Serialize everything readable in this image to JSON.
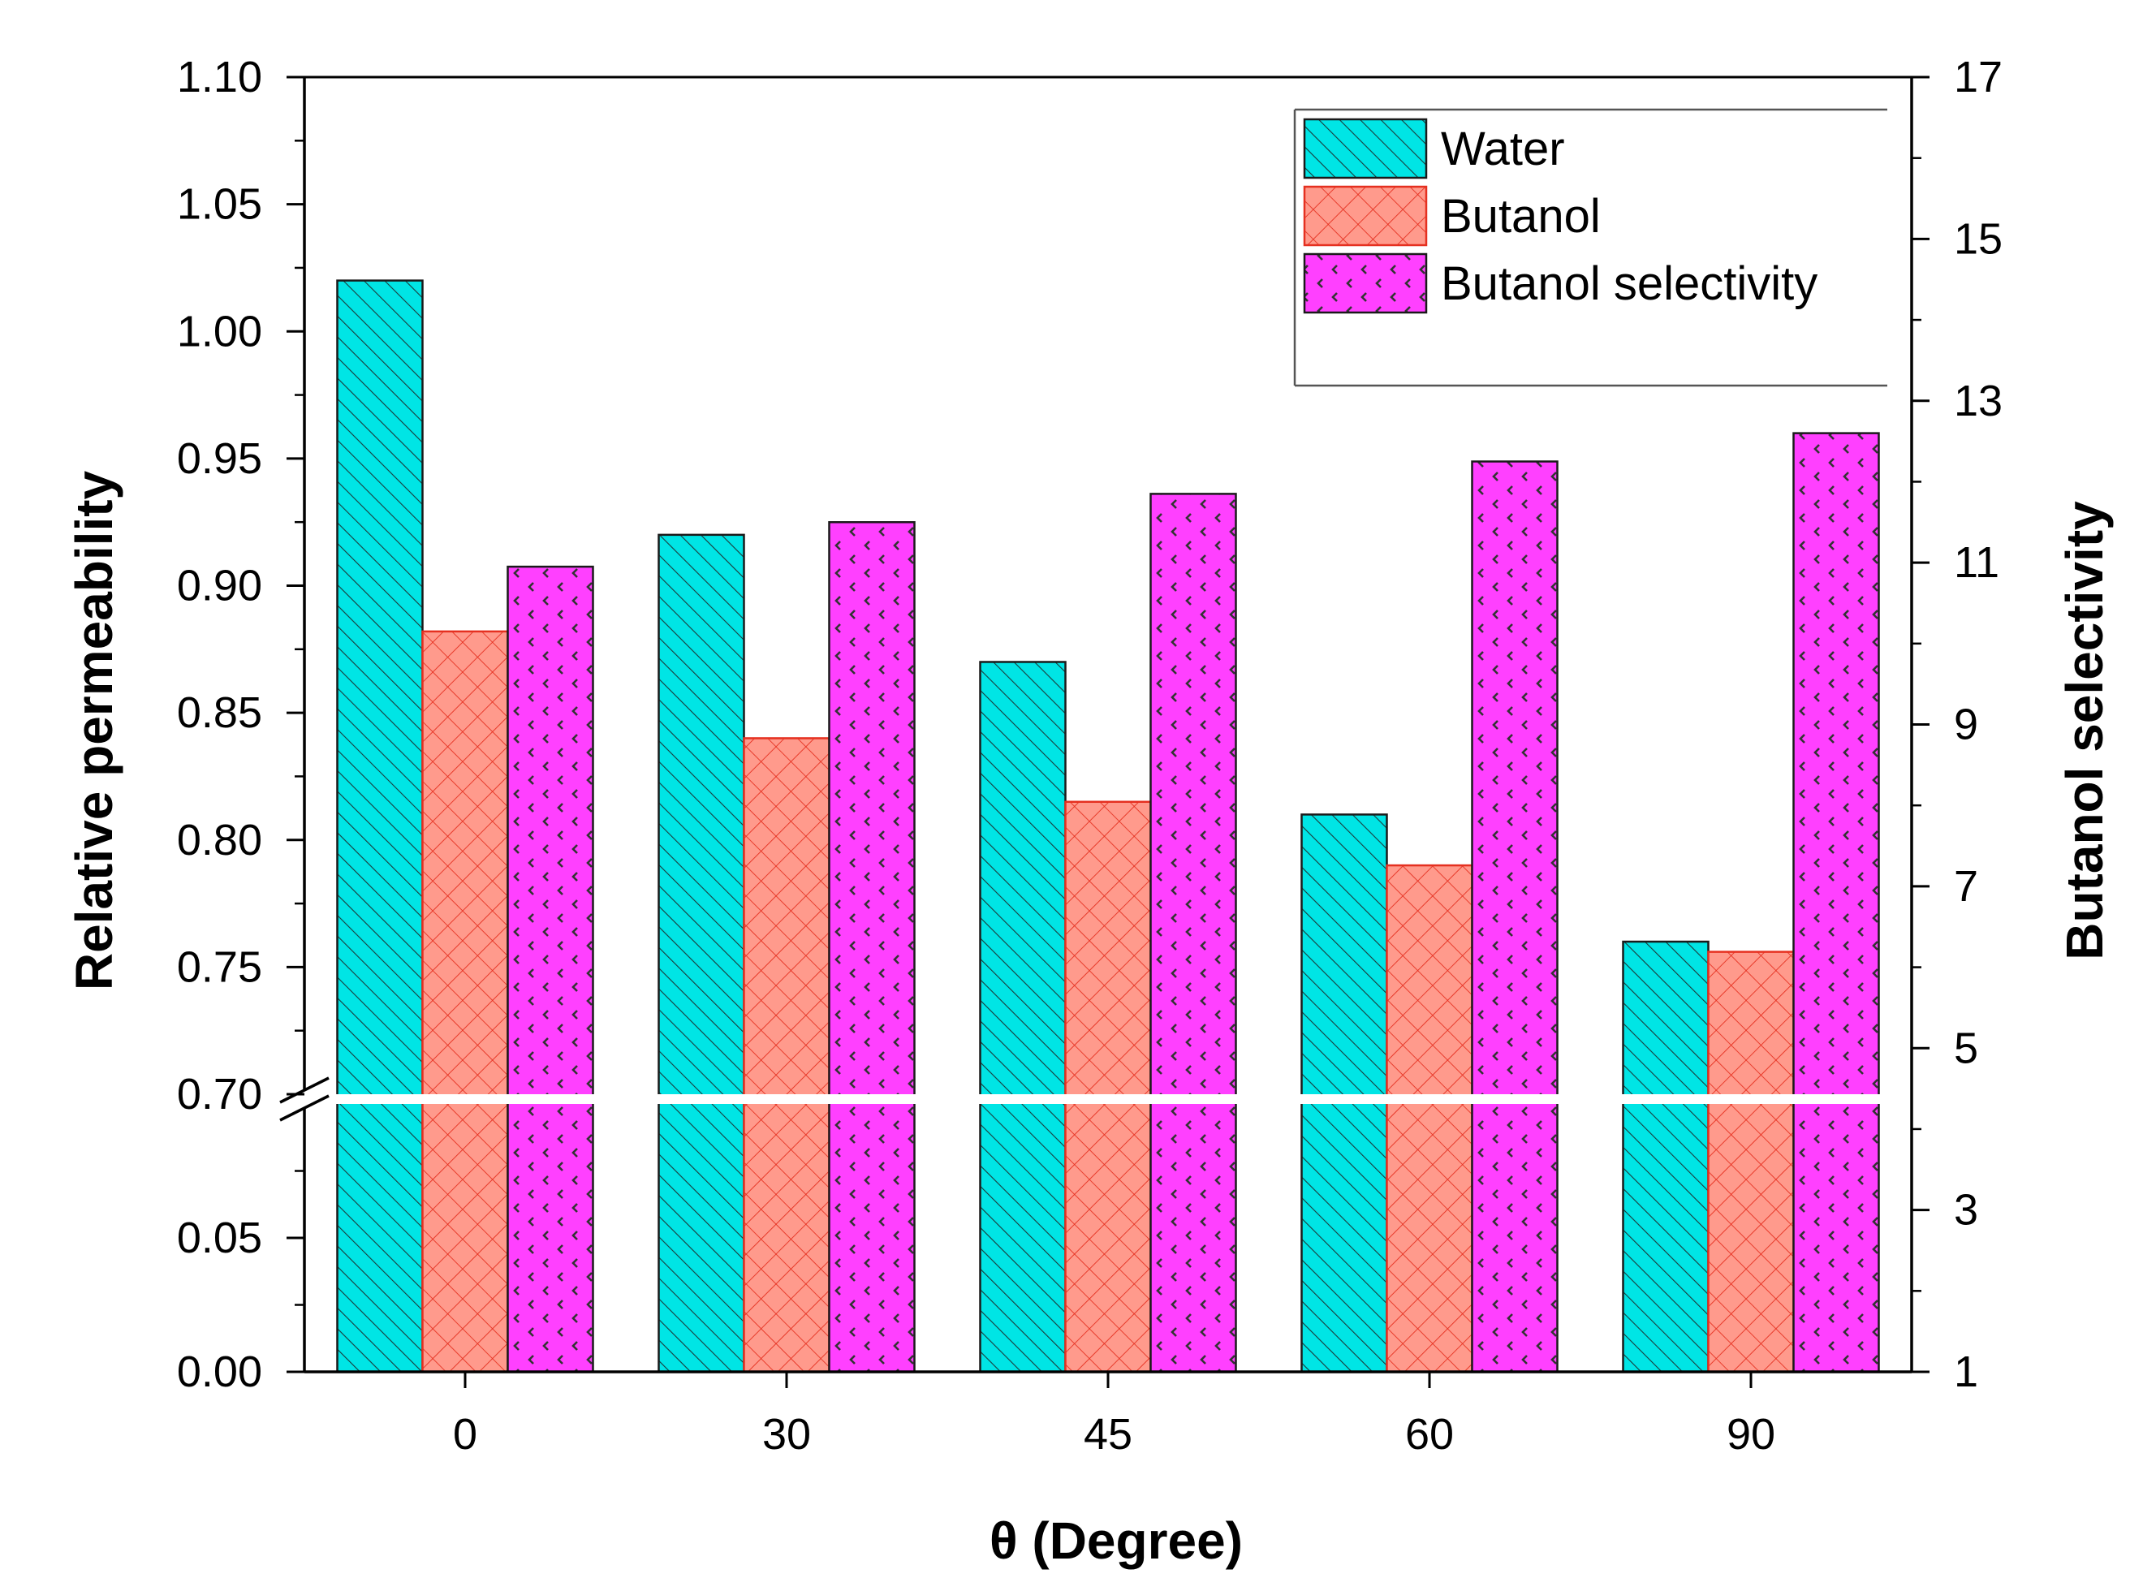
{
  "chart_data": {
    "type": "bar",
    "categories": [
      "0",
      "30",
      "45",
      "60",
      "90"
    ],
    "series": [
      {
        "name": "Water",
        "axis": "left",
        "values": [
          1.02,
          0.92,
          0.87,
          0.81,
          0.76
        ],
        "color": "#00e5e5",
        "edge": "#1a1a1a",
        "pattern": "diagonal-hatch"
      },
      {
        "name": "Butanol",
        "axis": "left",
        "values": [
          0.882,
          0.84,
          0.815,
          0.79,
          0.756
        ],
        "color": "#ff9a8c",
        "edge": "#e53020",
        "pattern": "crosshatch"
      },
      {
        "name": "Butanol selectivity",
        "axis": "right",
        "values": [
          10.95,
          11.5,
          11.85,
          12.25,
          12.6
        ],
        "color": "#ff40ff",
        "edge": "#1a1a1a",
        "pattern": "dots"
      }
    ],
    "xlabel": "θ (Degree)",
    "ylabel_left": "Relative permeability",
    "ylabel_right": "Butanol selectivity",
    "y_left_break": {
      "lower_range": [
        0,
        0.1
      ],
      "upper_range": [
        0.7,
        1.1
      ],
      "lower_ticks": [
        "0.00",
        "0.05"
      ],
      "upper_ticks": [
        "0.70",
        "0.75",
        "0.80",
        "0.85",
        "0.90",
        "0.95",
        "1.00",
        "1.05",
        "1.10"
      ]
    },
    "y_right_range": [
      1,
      17
    ],
    "y_right_ticks": [
      "1",
      "3",
      "5",
      "7",
      "9",
      "11",
      "13",
      "15",
      "17"
    ],
    "legend": {
      "position": "top-right",
      "entries": [
        "Water",
        "Butanol",
        "Butanol selectivity"
      ]
    }
  }
}
